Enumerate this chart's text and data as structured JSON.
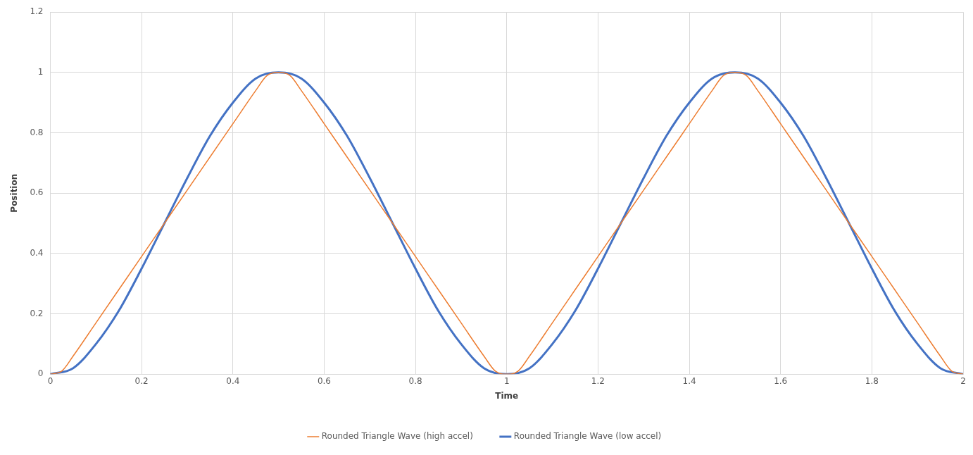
{
  "chart_data": {
    "type": "line",
    "xlabel": "Time",
    "ylabel": "Position",
    "xlim": [
      0,
      2
    ],
    "xticks": [
      0,
      0.2,
      0.4,
      0.6,
      0.8,
      1,
      1.2,
      1.4,
      1.6,
      1.8,
      2
    ],
    "ylim": [
      0,
      1.2
    ],
    "yticks": [
      0,
      0.2,
      0.4,
      0.6,
      0.8,
      1,
      1.2
    ],
    "grid": true,
    "legend": "bottom",
    "marker": "none",
    "line_style": "solid",
    "series": [
      {
        "name": "Rounded Triangle Wave (high accel)",
        "color": "#ed7d31",
        "x": [
          0,
          0.025,
          0.05,
          0.1,
          0.15,
          0.2,
          0.25,
          0.3,
          0.35,
          0.4,
          0.45,
          0.475,
          0.5,
          0.525,
          0.55,
          0.6,
          0.65,
          0.7,
          0.75,
          0.8,
          0.85,
          0.9,
          0.95,
          0.975,
          1,
          1.025,
          1.05,
          1.1,
          1.15,
          1.2,
          1.25,
          1.3,
          1.35,
          1.4,
          1.45,
          1.475,
          1.5,
          1.525,
          1.55,
          1.6,
          1.65,
          1.7,
          1.75,
          1.8,
          1.85,
          1.9,
          1.95,
          1.975,
          2
        ],
        "values": [
          0,
          0.01,
          0.06,
          0.17,
          0.28,
          0.39,
          0.5,
          0.61,
          0.72,
          0.83,
          0.94,
          0.99,
          1,
          0.99,
          0.94,
          0.83,
          0.72,
          0.61,
          0.5,
          0.39,
          0.28,
          0.17,
          0.06,
          0.01,
          0,
          0.01,
          0.06,
          0.17,
          0.28,
          0.39,
          0.5,
          0.61,
          0.72,
          0.83,
          0.94,
          0.99,
          1,
          0.99,
          0.94,
          0.83,
          0.72,
          0.61,
          0.5,
          0.39,
          0.28,
          0.17,
          0.06,
          0.01,
          0
        ]
      },
      {
        "name": "Rounded Triangle Wave (low accel)",
        "color": "#4472c4",
        "x": [
          0,
          0.05,
          0.1,
          0.15,
          0.2,
          0.25,
          0.3,
          0.35,
          0.4,
          0.45,
          0.5,
          0.55,
          0.6,
          0.65,
          0.7,
          0.75,
          0.8,
          0.85,
          0.9,
          0.95,
          1,
          1.05,
          1.1,
          1.15,
          1.2,
          1.25,
          1.3,
          1.35,
          1.4,
          1.45,
          1.5,
          1.55,
          1.6,
          1.65,
          1.7,
          1.75,
          1.8,
          1.85,
          1.9,
          1.95,
          2
        ],
        "values": [
          0,
          0.02,
          0.1,
          0.21,
          0.35,
          0.5,
          0.65,
          0.79,
          0.9,
          0.98,
          1,
          0.98,
          0.9,
          0.79,
          0.65,
          0.5,
          0.35,
          0.21,
          0.1,
          0.02,
          0,
          0.02,
          0.1,
          0.21,
          0.35,
          0.5,
          0.65,
          0.79,
          0.9,
          0.98,
          1,
          0.98,
          0.9,
          0.79,
          0.65,
          0.5,
          0.35,
          0.21,
          0.1,
          0.02,
          0
        ]
      }
    ]
  }
}
